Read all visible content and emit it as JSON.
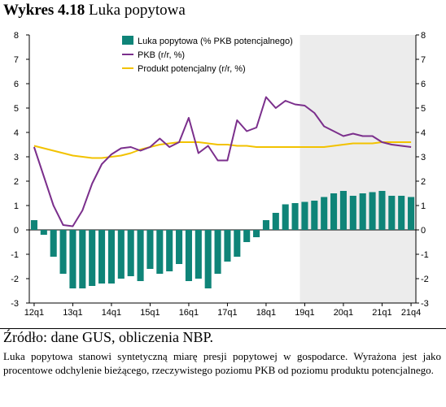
{
  "figure": {
    "label": "Wykres 4.18",
    "title": "Luka popytowa",
    "source": "Źródło: dane GUS, obliczenia NBP.",
    "note": "Luka popytowa stanowi syntetyczną miarę presji popytowej w gospodarce. Wyrażona jest jako procentowe odchylenie bieżącego, rzeczywistego poziomu PKB od poziomu produktu potencjalnego."
  },
  "chart_data": {
    "type": "bar",
    "ylim": [
      -3,
      8
    ],
    "yticks": [
      -3,
      -2,
      -1,
      0,
      1,
      2,
      3,
      4,
      5,
      6,
      7,
      8
    ],
    "grid": false,
    "legend": "top-center",
    "xtick_labels": [
      "12q1",
      "13q1",
      "14q1",
      "15q1",
      "16q1",
      "17q1",
      "18q1",
      "19q1",
      "20q1",
      "21q1",
      "21q4"
    ],
    "projection_from": "19q1",
    "colors": {
      "gap": "#0f8478",
      "gdp": "#7b2f8c",
      "potential": "#f2c200",
      "projection": "#ececec"
    },
    "categories": [
      "12q1",
      "12q2",
      "12q3",
      "12q4",
      "13q1",
      "13q2",
      "13q3",
      "13q4",
      "14q1",
      "14q2",
      "14q3",
      "14q4",
      "15q1",
      "15q2",
      "15q3",
      "15q4",
      "16q1",
      "16q2",
      "16q3",
      "16q4",
      "17q1",
      "17q2",
      "17q3",
      "17q4",
      "18q1",
      "18q2",
      "18q3",
      "18q4",
      "19q1",
      "19q2",
      "19q3",
      "19q4",
      "20q1",
      "20q2",
      "20q3",
      "20q4",
      "21q1",
      "21q2",
      "21q3",
      "21q4"
    ],
    "series": [
      {
        "name": "Luka popytowa (% PKB potencjalnego)",
        "type": "bar",
        "values": [
          0.4,
          -0.2,
          -1.1,
          -1.8,
          -2.4,
          -2.4,
          -2.3,
          -2.2,
          -2.2,
          -2.0,
          -1.9,
          -2.1,
          -1.6,
          -1.8,
          -1.7,
          -1.4,
          -2.1,
          -2.0,
          -2.4,
          -1.8,
          -1.3,
          -1.1,
          -0.5,
          -0.3,
          0.4,
          0.7,
          1.05,
          1.1,
          1.15,
          1.2,
          1.35,
          1.5,
          1.6,
          1.4,
          1.5,
          1.55,
          1.6,
          1.4,
          1.4,
          1.35
        ]
      },
      {
        "name": "PKB (r/r, %)",
        "type": "line",
        "values": [
          3.4,
          2.2,
          1.0,
          0.2,
          0.15,
          0.8,
          1.9,
          2.7,
          3.1,
          3.35,
          3.4,
          3.25,
          3.4,
          3.75,
          3.4,
          3.6,
          4.6,
          3.15,
          3.45,
          2.85,
          2.85,
          4.5,
          4.05,
          4.2,
          5.45,
          5.0,
          5.3,
          5.15,
          5.1,
          4.8,
          4.25,
          4.05,
          3.85,
          3.95,
          3.85,
          3.85,
          3.6,
          3.5,
          3.45,
          3.4
        ]
      },
      {
        "name": "Produkt potencjalny (r/r, %)",
        "type": "line",
        "values": [
          3.45,
          3.35,
          3.25,
          3.15,
          3.05,
          3.0,
          2.95,
          2.95,
          3.0,
          3.05,
          3.15,
          3.3,
          3.4,
          3.5,
          3.55,
          3.6,
          3.6,
          3.6,
          3.55,
          3.5,
          3.5,
          3.45,
          3.45,
          3.4,
          3.4,
          3.4,
          3.4,
          3.4,
          3.4,
          3.4,
          3.4,
          3.45,
          3.5,
          3.55,
          3.55,
          3.55,
          3.6,
          3.6,
          3.6,
          3.6
        ]
      }
    ]
  }
}
